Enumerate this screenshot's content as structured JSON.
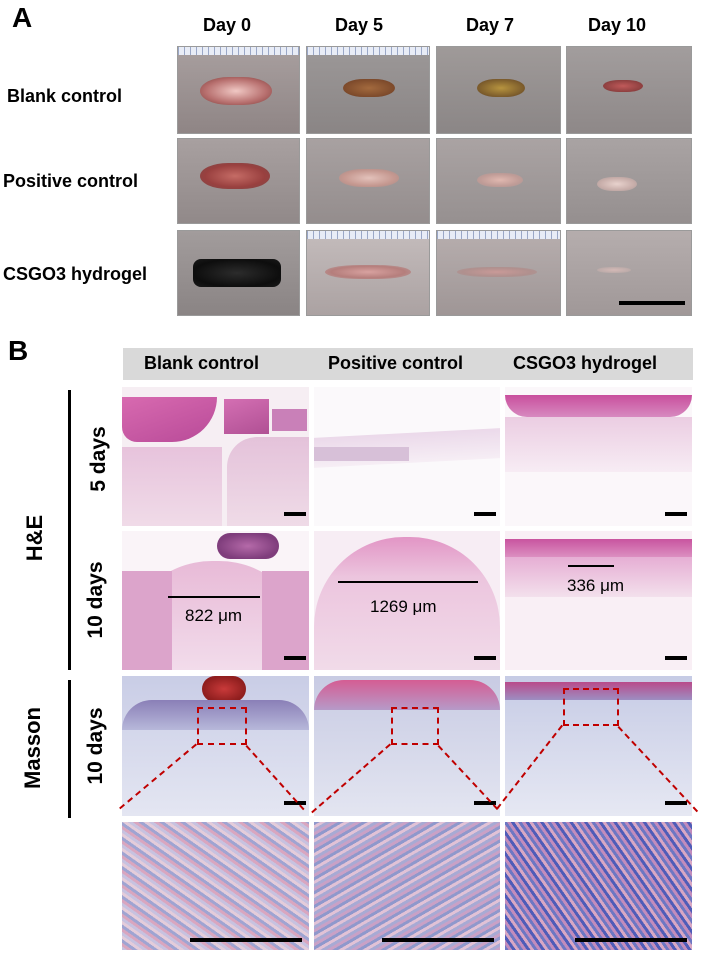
{
  "panel_a": {
    "letter": "A",
    "columns": [
      "Day 0",
      "Day 5",
      "Day 7",
      "Day 10"
    ],
    "rows": [
      "Blank control",
      "Positive control",
      "CSGO3 hydrogel"
    ]
  },
  "panel_b": {
    "letter": "B",
    "columns": [
      "Blank control",
      "Positive control",
      "CSGO3 hydrogel"
    ],
    "stain_labels": [
      "H&E",
      "Masson"
    ],
    "time_labels": [
      "5 days",
      "10 days",
      "10 days"
    ],
    "measurements": [
      "822 μm",
      "1269 μm",
      "336 μm"
    ]
  }
}
